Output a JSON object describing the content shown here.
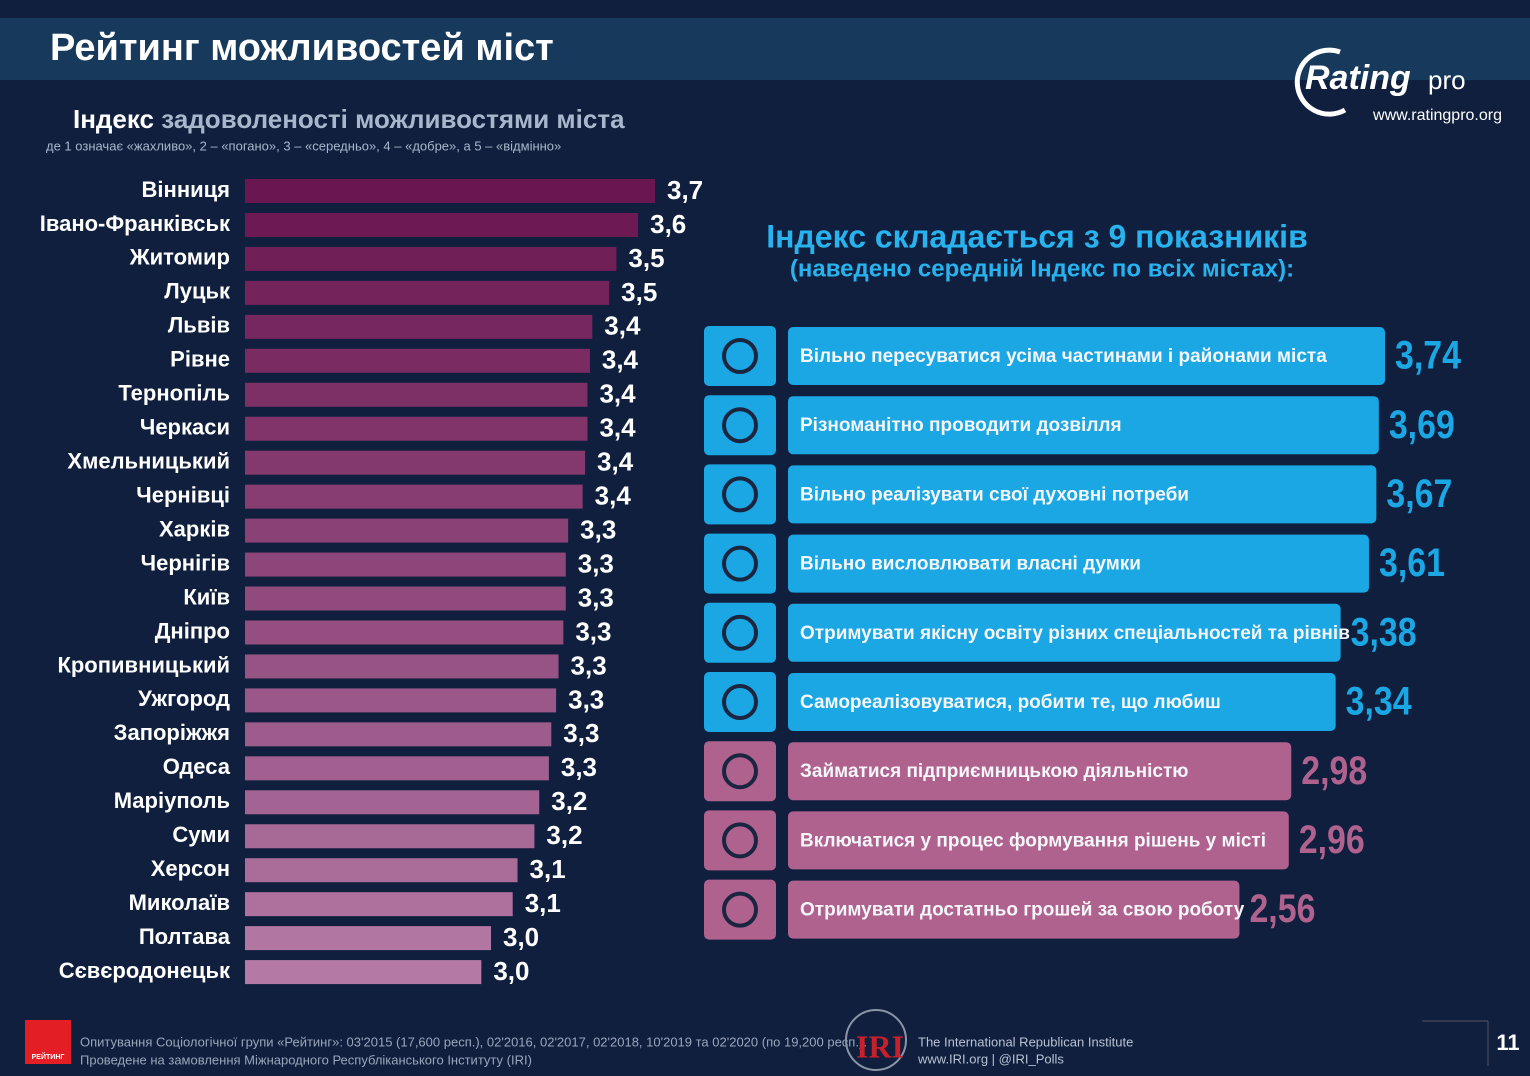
{
  "header": {
    "title": "Рейтинг можливостей міст",
    "logo_main": "Rating",
    "logo_suffix": "pro",
    "logo_url": "www.ratingpro.org"
  },
  "chart_data": [
    {
      "type": "hbar",
      "title_lead": "Індекс",
      "title": "задоволеності можливостями міста",
      "note": "де 1 означає «жахливо», 2 – «погано», 3 – «середньо», 4 – «добре», а 5 – «відмінно»",
      "categories": [
        "Вінниця",
        "Івано-Франківськ",
        "Житомир",
        "Луцьк",
        "Львів",
        "Рівне",
        "Тернопіль",
        "Черкаси",
        "Хмельницький",
        "Чернівці",
        "Харків",
        "Чернігів",
        "Київ",
        "Дніпро",
        "Кропивницький",
        "Ужгород",
        "Запоріжжя",
        "Одеса",
        "Маріуполь",
        "Суми",
        "Херсон",
        "Миколаїв",
        "Полтава",
        "Сєвєродонецьк"
      ],
      "values": [
        3.7,
        3.63,
        3.54,
        3.51,
        3.44,
        3.43,
        3.42,
        3.42,
        3.41,
        3.4,
        3.34,
        3.33,
        3.33,
        3.32,
        3.3,
        3.29,
        3.27,
        3.26,
        3.22,
        3.2,
        3.13,
        3.11,
        3.02,
        2.98
      ],
      "value_labels": [
        "3,7",
        "3,6",
        "3,5",
        "3,5",
        "3,4",
        "3,4",
        "3,4",
        "3,4",
        "3,4",
        "3,4",
        "3,3",
        "3,3",
        "3,3",
        "3,3",
        "3,3",
        "3,3",
        "3,3",
        "3,3",
        "3,2",
        "3,2",
        "3,1",
        "3,1",
        "3,0",
        "3,0"
      ],
      "color_range": [
        "#6a1650",
        "#b47aa5"
      ],
      "xlim": [
        2,
        3.7
      ]
    },
    {
      "type": "hbar-panel",
      "title": "Індекс складається з 9 показників",
      "subtitle": "(наведено середній Індекс по всіх містах):",
      "categories": [
        "Вільно пересуватися усіма частинами і районами міста",
        "Різноманітно проводити дозвілля",
        "Вільно реалізувати свої духовні потреби",
        "Вільно висловлювати власні думки",
        "Отримувати якісну освіту різних спеціальностей та рівнів",
        "Самореалізовуватися, робити те, що любиш",
        "Займатися підприємницькою діяльністю",
        "Включатися у процес формування рішень у місті",
        "Отримувати достатньо грошей за свою роботу"
      ],
      "values": [
        3.74,
        3.69,
        3.67,
        3.61,
        3.38,
        3.34,
        2.98,
        2.96,
        2.56
      ],
      "value_labels": [
        "3,74",
        "3,69",
        "3,67",
        "3,61",
        "3,38",
        "3,34",
        "2,98",
        "2,96",
        "2,56"
      ],
      "colors": [
        "#1aa7e4",
        "#1aa7e4",
        "#1aa7e4",
        "#1aa7e4",
        "#1aa7e4",
        "#1aa7e4",
        "#b0628f",
        "#b0628f",
        "#b0628f"
      ],
      "xlim": [
        -1.1,
        3.74
      ]
    }
  ],
  "footer": {
    "brand": "РЕЙТИНГ",
    "line1": "Опитування Соціологічної групи «Рейтинг»: 03'2015 (17,600 респ.), 02'2016, 02'2017, 02'2018, 10'2019 та 02'2020 (по 19,200 респ.).",
    "line2": "Проведене на замовлення Міжнародного Республіканського Інституту (IRI)",
    "iri": "IRI",
    "iri_name": "The International Republican Institute",
    "iri_links": "www.IRI.org | @IRI_Polls",
    "page": "11"
  }
}
